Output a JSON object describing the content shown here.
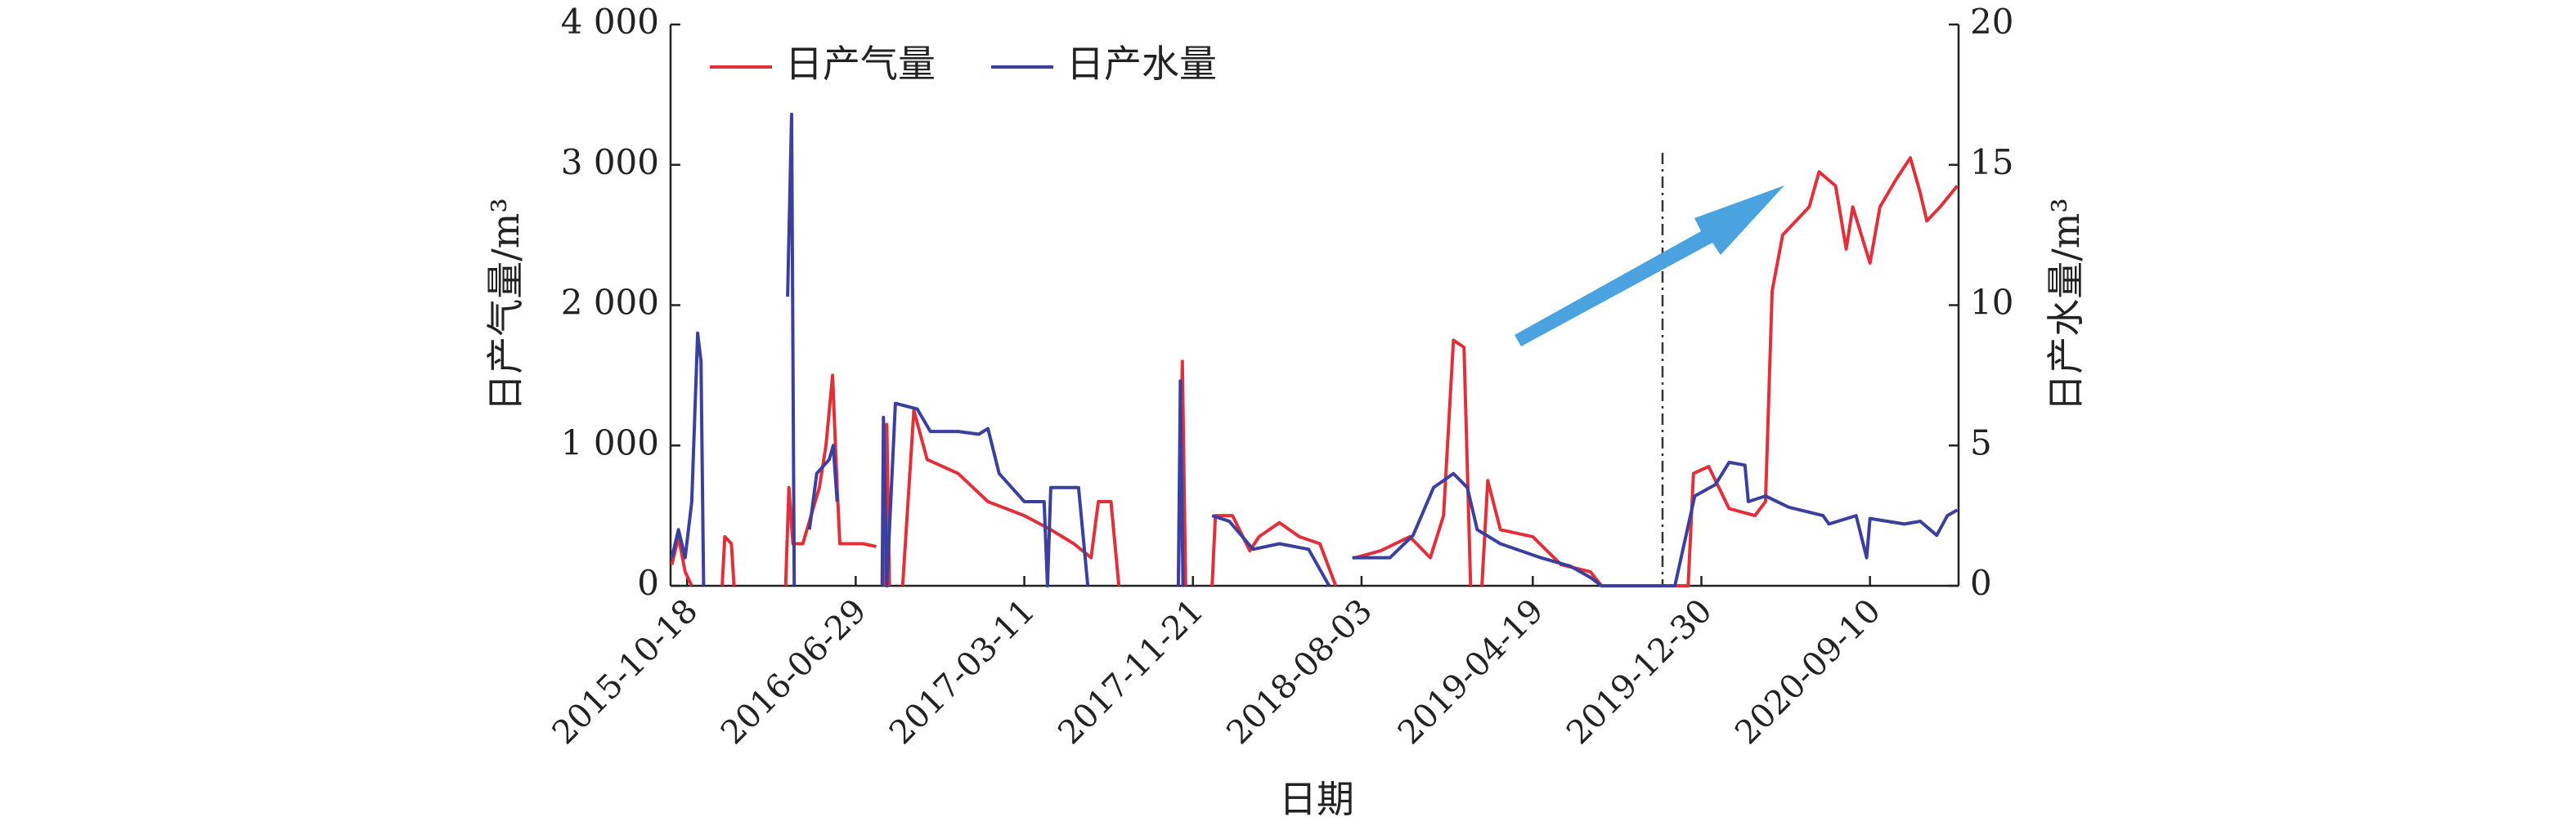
{
  "chart_data": {
    "type": "line",
    "x_label": "日期",
    "y_label": "日产气量/m³",
    "y2_label": "日产水量/m³",
    "xlim": [
      "2015-09-23",
      "2021-01-22"
    ],
    "xticks": [
      "2015-10-18",
      "2016-06-29",
      "2017-03-11",
      "2017-11-21",
      "2018-08-03",
      "2019-04-19",
      "2019-12-30",
      "2020-09-10"
    ],
    "ylim": [
      0,
      4000
    ],
    "yticks": [
      0,
      {
        "value": 1000,
        "label": "1 000"
      },
      {
        "value": 2000,
        "label": "2 000"
      },
      {
        "value": 3000,
        "label": "3 000"
      },
      {
        "value": 4000,
        "label": "4 000"
      }
    ],
    "y2lim": [
      0,
      20
    ],
    "y2ticks": [
      0,
      5,
      10,
      15,
      20
    ],
    "series": [
      {
        "name": "日产气量",
        "color": "#e2303b",
        "x": [
          "2015-09-25",
          "2015-10-05",
          "2015-10-15",
          "2015-10-25",
          "2015-11-20",
          "2015-12-10",
          "2015-12-14",
          "2015-12-24",
          "2015-12-28",
          "2016-02-01",
          "2016-03-15",
          "2016-03-20",
          "2016-03-26",
          "2016-04-10",
          "2016-05-05",
          "2016-05-15",
          "2016-05-25",
          "2016-06-01",
          "2016-06-05",
          "2016-07-10",
          "2016-07-30",
          "2016-08-05",
          "2016-08-12",
          "2016-08-15",
          "2016-08-19",
          "2016-08-30",
          "2016-09-08",
          "2016-09-25",
          "2016-10-15",
          "2016-12-01",
          "2017-01-15",
          "2017-03-11",
          "2017-04-20",
          "2017-05-25",
          "2017-06-20",
          "2017-07-01",
          "2017-07-20",
          "2017-08-01",
          "2017-09-15",
          "2017-10-30",
          "2017-11-05",
          "2017-11-10",
          "2017-12-01",
          "2017-12-20",
          "2017-12-25",
          "2018-01-20",
          "2018-02-15",
          "2018-03-01",
          "2018-04-01",
          "2018-05-01",
          "2018-06-01",
          "2018-06-25",
          "2018-07-10",
          "2018-07-25",
          "2018-09-01",
          "2018-10-15",
          "2018-11-15",
          "2018-12-05",
          "2018-12-20",
          "2019-01-05",
          "2019-01-15",
          "2019-01-25",
          "2019-02-01",
          "2019-02-10",
          "2019-03-01",
          "2019-04-19",
          "2019-06-01",
          "2019-07-15",
          "2019-08-01",
          "2019-12-10",
          "2019-12-18",
          "2020-01-10",
          "2020-02-10",
          "2020-03-20",
          "2020-04-05",
          "2020-04-15",
          "2020-05-01",
          "2020-06-10",
          "2020-06-25",
          "2020-07-20",
          "2020-08-05",
          "2020-08-15",
          "2020-09-10",
          "2020-09-25",
          "2020-10-20",
          "2020-11-10",
          "2020-11-25",
          "2020-12-05",
          "2020-12-25",
          "2021-01-20"
        ],
        "values": [
          150,
          350,
          100,
          0,
          null,
          0,
          350,
          300,
          0,
          null,
          0,
          700,
          300,
          300,
          700,
          1000,
          1500,
          700,
          300,
          300,
          280,
          null,
          0,
          1150,
          0,
          null,
          0,
          1250,
          900,
          800,
          600,
          500,
          400,
          300,
          200,
          600,
          600,
          0,
          null,
          0,
          1600,
          0,
          null,
          0,
          500,
          500,
          250,
          350,
          450,
          350,
          300,
          0,
          null,
          200,
          250,
          350,
          200,
          500,
          1750,
          1700,
          0,
          null,
          0,
          750,
          400,
          350,
          150,
          100,
          0,
          0,
          800,
          850,
          550,
          500,
          600,
          2100,
          2500,
          2700,
          2950,
          2850,
          2400,
          2700,
          2300,
          2700,
          2900,
          3050,
          2800,
          2600,
          2700,
          2850
        ]
      },
      {
        "name": "日产水量",
        "color": "#3b3f9e",
        "axis": "y2",
        "x": [
          "2015-09-25",
          "2015-10-05",
          "2015-10-15",
          "2015-10-25",
          "2015-11-03",
          "2015-11-08",
          "2015-11-12",
          "2015-12-01",
          "2015-12-28",
          "2016-01-01",
          "2016-03-18",
          "2016-03-24",
          "2016-03-28",
          "2016-04-05",
          "2016-04-20",
          "2016-05-01",
          "2016-05-20",
          "2016-05-26",
          "2016-06-01",
          "2016-07-15",
          "2016-08-08",
          "2016-08-10",
          "2016-08-15",
          "2016-08-28",
          "2016-09-30",
          "2016-10-20",
          "2016-12-01",
          "2017-01-01",
          "2017-01-15",
          "2017-02-01",
          "2017-03-11",
          "2017-04-10",
          "2017-04-15",
          "2017-04-20",
          "2017-05-01",
          "2017-06-01",
          "2017-06-15",
          "2017-08-01",
          "2017-10-30",
          "2017-11-02",
          "2017-11-06",
          "2017-12-01",
          "2017-12-20",
          "2018-01-15",
          "2018-02-20",
          "2018-04-01",
          "2018-05-15",
          "2018-06-15",
          "2018-07-10",
          "2018-07-20",
          "2018-09-15",
          "2018-10-20",
          "2018-11-20",
          "2018-12-20",
          "2019-01-10",
          "2019-01-25",
          "2019-03-01",
          "2019-05-01",
          "2019-06-15",
          "2019-07-15",
          "2019-08-01",
          "2019-11-20",
          "2019-12-20",
          "2020-01-20",
          "2020-02-10",
          "2020-03-05",
          "2020-03-10",
          "2020-04-05",
          "2020-05-10",
          "2020-07-01",
          "2020-07-10",
          "2020-08-20",
          "2020-09-05",
          "2020-09-10",
          "2020-11-01",
          "2020-11-25",
          "2020-12-20",
          "2021-01-05",
          "2021-01-20"
        ],
        "values": [
          1,
          2,
          1,
          3,
          9,
          8,
          0,
          null,
          0.5,
          null,
          10.3,
          16.8,
          0,
          null,
          2,
          4,
          4.5,
          5,
          3,
          null,
          0,
          6,
          0,
          6.5,
          6.3,
          5.5,
          5.5,
          5.4,
          5.6,
          4,
          3,
          3,
          0,
          3.5,
          3.5,
          3.5,
          0,
          null,
          0,
          7.3,
          0,
          null,
          2.5,
          2.3,
          1.3,
          1.5,
          1.3,
          0,
          null,
          1,
          1,
          1.8,
          3.5,
          4,
          3.5,
          2,
          1.5,
          1,
          0.7,
          0.3,
          0,
          0,
          3.2,
          3.6,
          4.4,
          4.3,
          3,
          3.2,
          2.8,
          2.5,
          2.2,
          2.5,
          1,
          2.4,
          2.2,
          2.3,
          1.8,
          2.5,
          2.7
        ]
      }
    ]
  }
}
